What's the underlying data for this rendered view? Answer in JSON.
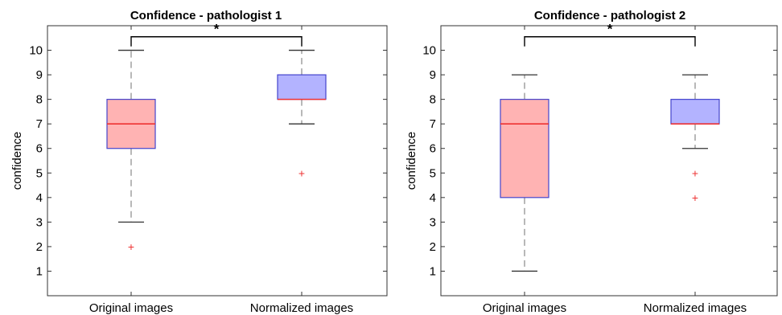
{
  "chart_data": [
    {
      "type": "box",
      "title": "Confidence - pathologist 1",
      "ylabel": "confidence",
      "xlabel": "",
      "ylim": [
        0,
        11
      ],
      "yticks": [
        1,
        2,
        3,
        4,
        5,
        6,
        7,
        8,
        9,
        10
      ],
      "categories": [
        "Original images",
        "Normalized images"
      ],
      "boxes": [
        {
          "whisker_low": 3,
          "q1": 6,
          "median": 7,
          "q3": 8,
          "whisker_high": 10,
          "outliers": [
            2
          ],
          "fill": "#ffb3b3",
          "edge": "#4444cc",
          "median_color": "#ee3333"
        },
        {
          "whisker_low": 7,
          "q1": 8,
          "median": 8,
          "q3": 9,
          "whisker_high": 10,
          "outliers": [
            5
          ],
          "fill": "#b3b3ff",
          "edge": "#4444cc",
          "median_color": "#ee3333"
        }
      ],
      "significance": {
        "label": "*",
        "between": [
          0,
          1
        ],
        "level": 10.55
      },
      "grid": false
    },
    {
      "type": "box",
      "title": "Confidence - pathologist 2",
      "ylabel": "confidence",
      "xlabel": "",
      "ylim": [
        0,
        11
      ],
      "yticks": [
        1,
        2,
        3,
        4,
        5,
        6,
        7,
        8,
        9,
        10
      ],
      "categories": [
        "Original images",
        "Normalized images"
      ],
      "boxes": [
        {
          "whisker_low": 1,
          "q1": 4,
          "median": 7,
          "q3": 8,
          "whisker_high": 9,
          "outliers": [],
          "fill": "#ffb3b3",
          "edge": "#4444cc",
          "median_color": "#ee3333"
        },
        {
          "whisker_low": 6,
          "q1": 7,
          "median": 7,
          "q3": 8,
          "whisker_high": 9,
          "outliers": [
            5,
            4
          ],
          "fill": "#b3b3ff",
          "edge": "#4444cc",
          "median_color": "#ee3333"
        }
      ],
      "significance": {
        "label": "*",
        "between": [
          0,
          1
        ],
        "level": 10.55
      },
      "grid": false
    }
  ]
}
